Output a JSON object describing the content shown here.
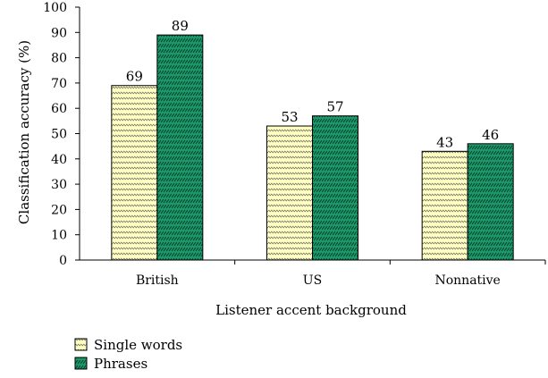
{
  "chart_data": {
    "type": "bar",
    "categories": [
      "British",
      "US",
      "Nonnative"
    ],
    "series": [
      {
        "name": "Single words",
        "values": [
          69,
          53,
          43
        ],
        "color": "#ffffc0",
        "hatch_color": "#707070"
      },
      {
        "name": "Phrases",
        "values": [
          89,
          57,
          46
        ],
        "color": "#1a9a6a",
        "hatch_color": "#0a3a28"
      }
    ],
    "xlabel": "Listener accent background",
    "ylabel": "Classification accuracy (%)",
    "ylim": [
      0,
      100
    ],
    "yticks": [
      0,
      10,
      20,
      30,
      40,
      50,
      60,
      70,
      80,
      90,
      100
    ],
    "grid": false,
    "legend_position": "bottom-left"
  }
}
